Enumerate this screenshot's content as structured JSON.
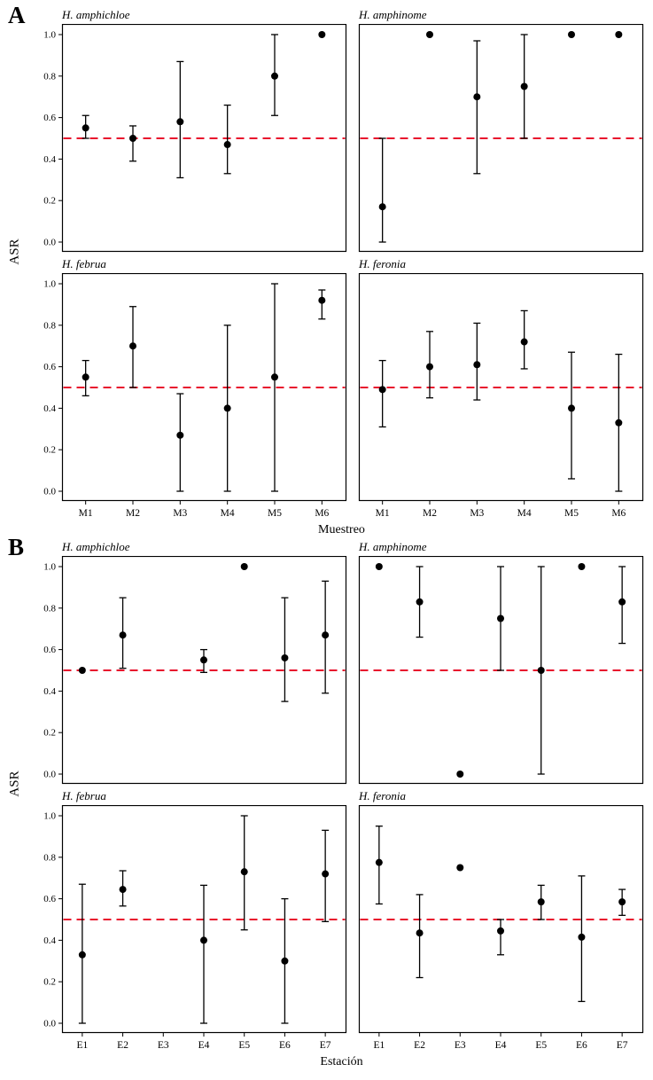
{
  "figure": {
    "background": "#ffffff",
    "point_color": "#000000",
    "reference_line_color": "#e8112d",
    "reference_line_style": "dashed"
  },
  "panels": [
    {
      "label": "A",
      "ylabel": "ASR",
      "xlabel": "Muestreo"
    },
    {
      "label": "B",
      "ylabel": "ASR",
      "xlabel": "Estación"
    }
  ],
  "chart_data": [
    {
      "type": "scatter",
      "panel": "A",
      "title": "H. amphichloe",
      "categories": [
        "M1",
        "M2",
        "M3",
        "M4",
        "M5",
        "M6"
      ],
      "values": [
        0.55,
        0.5,
        0.58,
        0.47,
        0.8,
        1.0
      ],
      "ci_low": [
        0.5,
        0.39,
        0.31,
        0.33,
        0.61,
        1.0
      ],
      "ci_high": [
        0.61,
        0.56,
        0.87,
        0.66,
        1.0,
        1.0
      ],
      "ylim": [
        0,
        1
      ],
      "yticks": [
        0.0,
        0.2,
        0.4,
        0.6,
        0.8,
        1.0
      ],
      "reference_y": 0.5,
      "grid": false
    },
    {
      "type": "scatter",
      "panel": "A",
      "title": "H. amphinome",
      "categories": [
        "M1",
        "M2",
        "M3",
        "M4",
        "M5",
        "M6"
      ],
      "values": [
        0.17,
        1.0,
        0.7,
        0.75,
        1.0,
        1.0
      ],
      "ci_low": [
        0.0,
        1.0,
        0.33,
        0.5,
        1.0,
        1.0
      ],
      "ci_high": [
        0.5,
        1.0,
        0.97,
        1.0,
        1.0,
        1.0
      ],
      "ylim": [
        0,
        1
      ],
      "yticks": [
        0.0,
        0.2,
        0.4,
        0.6,
        0.8,
        1.0
      ],
      "reference_y": 0.5,
      "grid": false
    },
    {
      "type": "scatter",
      "panel": "A",
      "title": "H. februa",
      "categories": [
        "M1",
        "M2",
        "M3",
        "M4",
        "M5",
        "M6"
      ],
      "values": [
        0.55,
        0.7,
        0.27,
        0.4,
        0.55,
        0.92
      ],
      "ci_low": [
        0.46,
        0.5,
        0.0,
        0.0,
        0.0,
        0.83
      ],
      "ci_high": [
        0.63,
        0.89,
        0.47,
        0.8,
        1.0,
        0.97
      ],
      "ylim": [
        0,
        1
      ],
      "yticks": [
        0.0,
        0.2,
        0.4,
        0.6,
        0.8,
        1.0
      ],
      "reference_y": 0.5,
      "grid": false
    },
    {
      "type": "scatter",
      "panel": "A",
      "title": "H. feronia",
      "categories": [
        "M1",
        "M2",
        "M3",
        "M4",
        "M5",
        "M6"
      ],
      "values": [
        0.49,
        0.6,
        0.61,
        0.72,
        0.4,
        0.33
      ],
      "ci_low": [
        0.31,
        0.45,
        0.44,
        0.59,
        0.06,
        0.0
      ],
      "ci_high": [
        0.63,
        0.77,
        0.81,
        0.87,
        0.67,
        0.66
      ],
      "ylim": [
        0,
        1
      ],
      "yticks": [
        0.0,
        0.2,
        0.4,
        0.6,
        0.8,
        1.0
      ],
      "reference_y": 0.5,
      "grid": false
    },
    {
      "type": "scatter",
      "panel": "B",
      "title": "H. amphichloe",
      "categories": [
        "E1",
        "E2",
        "E3",
        "E4",
        "E5",
        "E6",
        "E7"
      ],
      "values": [
        0.5,
        0.67,
        null,
        0.55,
        1.0,
        0.56,
        0.67
      ],
      "ci_low": [
        0.5,
        0.51,
        null,
        0.49,
        1.0,
        0.35,
        0.39
      ],
      "ci_high": [
        0.5,
        0.85,
        null,
        0.6,
        1.0,
        0.85,
        0.93
      ],
      "ylim": [
        0,
        1
      ],
      "yticks": [
        0.0,
        0.2,
        0.4,
        0.6,
        0.8,
        1.0
      ],
      "reference_y": 0.5,
      "grid": false
    },
    {
      "type": "scatter",
      "panel": "B",
      "title": "H. amphinome",
      "categories": [
        "E1",
        "E2",
        "E3",
        "E4",
        "E5",
        "E6",
        "E7"
      ],
      "values": [
        1.0,
        0.83,
        0.0,
        0.75,
        0.5,
        1.0,
        0.83
      ],
      "ci_low": [
        1.0,
        0.66,
        0.0,
        0.5,
        0.0,
        1.0,
        0.63
      ],
      "ci_high": [
        1.0,
        1.0,
        0.0,
        1.0,
        1.0,
        1.0,
        1.0
      ],
      "ylim": [
        0,
        1
      ],
      "yticks": [
        0.0,
        0.2,
        0.4,
        0.6,
        0.8,
        1.0
      ],
      "reference_y": 0.5,
      "grid": false
    },
    {
      "type": "scatter",
      "panel": "B",
      "title": "H. februa",
      "categories": [
        "E1",
        "E2",
        "E3",
        "E4",
        "E5",
        "E6",
        "E7"
      ],
      "values": [
        0.33,
        0.645,
        null,
        0.4,
        0.73,
        0.3,
        0.72
      ],
      "ci_low": [
        0.0,
        0.565,
        null,
        0.0,
        0.45,
        0.0,
        0.49
      ],
      "ci_high": [
        0.67,
        0.735,
        null,
        0.665,
        1.0,
        0.6,
        0.93
      ],
      "ylim": [
        0,
        1
      ],
      "yticks": [
        0.0,
        0.2,
        0.4,
        0.6,
        0.8,
        1.0
      ],
      "reference_y": 0.5,
      "grid": false
    },
    {
      "type": "scatter",
      "panel": "B",
      "title": "H. feronia",
      "categories": [
        "E1",
        "E2",
        "E3",
        "E4",
        "E5",
        "E6",
        "E7"
      ],
      "values": [
        0.775,
        0.435,
        0.75,
        0.445,
        0.585,
        0.415,
        0.585
      ],
      "ci_low": [
        0.575,
        0.22,
        0.75,
        0.33,
        0.5,
        0.105,
        0.52
      ],
      "ci_high": [
        0.95,
        0.62,
        0.75,
        0.5,
        0.665,
        0.71,
        0.645
      ],
      "ylim": [
        0,
        1
      ],
      "yticks": [
        0.0,
        0.2,
        0.4,
        0.6,
        0.8,
        1.0
      ],
      "reference_y": 0.5,
      "grid": false
    }
  ]
}
